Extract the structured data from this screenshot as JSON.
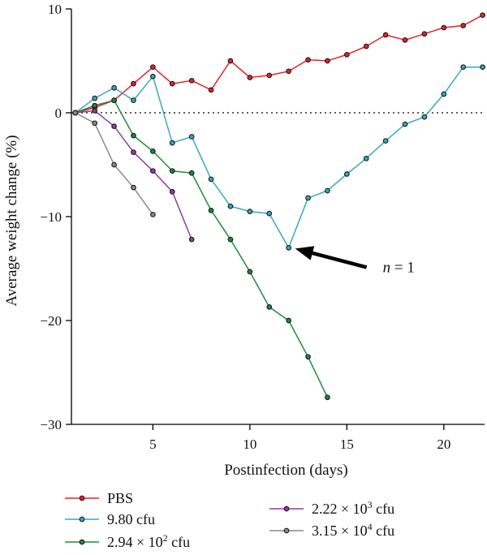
{
  "chart_data": {
    "type": "line",
    "xlabel": "Postinfection (days)",
    "ylabel": "Average weight change (%)",
    "xlim": [
      0.8,
      22.1
    ],
    "ylim": [
      -30,
      10
    ],
    "x_ticks": [
      5,
      10,
      15,
      20
    ],
    "y_ticks": [
      10,
      0,
      -10,
      -20,
      -30
    ],
    "grid": false,
    "legend_position": "bottom",
    "zero_reference_line": "dotted",
    "series": [
      {
        "name": "PBS",
        "color": "#e8202a",
        "label_base": "PBS",
        "x": [
          1,
          2,
          3,
          4,
          5,
          6,
          7,
          8,
          9,
          10,
          11,
          12,
          13,
          14,
          15,
          16,
          17,
          18,
          19,
          20,
          21,
          22
        ],
        "y": [
          0,
          0.5,
          1.2,
          2.8,
          4.4,
          2.8,
          3.1,
          2.2,
          5.0,
          3.4,
          3.6,
          4.0,
          5.1,
          5.0,
          5.6,
          6.4,
          7.5,
          7.0,
          7.6,
          8.2,
          8.4,
          9.4
        ]
      },
      {
        "name": "9.80 cfu",
        "color": "#3ba7be",
        "label_base": "9.80 cfu",
        "x": [
          1,
          2,
          3,
          4,
          5,
          6,
          7,
          8,
          9,
          10,
          11,
          12,
          13,
          14,
          15,
          16,
          17,
          18,
          19,
          20,
          21,
          22
        ],
        "y": [
          0,
          1.4,
          2.4,
          1.2,
          3.5,
          -2.9,
          -2.3,
          -6.4,
          -9.0,
          -9.5,
          -9.7,
          -13.0,
          -8.2,
          -7.5,
          -5.9,
          -4.4,
          -2.7,
          -1.1,
          -0.4,
          1.8,
          4.4,
          4.4
        ]
      },
      {
        "name": "2.94 × 10² cfu",
        "color": "#1f8a3c",
        "label_base": "2.94 × 10",
        "label_exp": "2",
        "label_unit": " cfu",
        "x": [
          1,
          2,
          3,
          4,
          5,
          6,
          7,
          8,
          9,
          10,
          11,
          12,
          13,
          14
        ],
        "y": [
          0,
          0.7,
          1.2,
          -2.2,
          -3.7,
          -5.6,
          -5.8,
          -9.4,
          -12.2,
          -15.3,
          -18.7,
          -20.0,
          -23.5,
          -27.4
        ]
      },
      {
        "name": "2.22 × 10³ cfu",
        "color": "#8e3f9d",
        "label_base": "2.22 × 10",
        "label_exp": "3",
        "label_unit": " cfu",
        "x": [
          1,
          2,
          3,
          4,
          5,
          6,
          7
        ],
        "y": [
          0,
          0.2,
          -1.3,
          -3.8,
          -5.6,
          -7.6,
          -12.2
        ]
      },
      {
        "name": "3.15 × 10⁴ cfu",
        "color": "#8a8a8a",
        "label_base": "3.15 × 10",
        "label_exp": "4",
        "label_unit": " cfu",
        "x": [
          1,
          2,
          3,
          4,
          5
        ],
        "y": [
          0,
          -1.0,
          -5.0,
          -7.2,
          -9.8
        ]
      }
    ],
    "annotations": [
      {
        "text_italic": "n",
        "text_rest": " = 1",
        "points_to": {
          "x": 12,
          "y": -13.0
        }
      }
    ]
  }
}
